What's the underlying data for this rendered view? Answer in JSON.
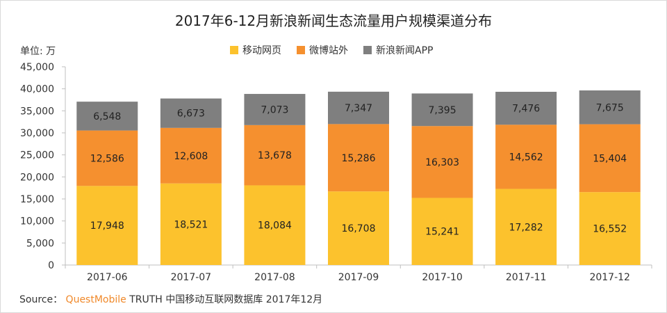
{
  "title": "2017年6-12月新浪新闻生态流量用户规模渠道分布",
  "unit_label": "单位: 万",
  "source": {
    "prefix": "Source：",
    "brand": "QuestMobile",
    "rest": " TRUTH 中国移动互联网数据库 2017年12月"
  },
  "chart_data": {
    "type": "bar",
    "stacked": true,
    "title": "2017年6-12月新浪新闻生态流量用户规模渠道分布",
    "xlabel": "",
    "ylabel": "单位: 万",
    "ylim": [
      0,
      45000
    ],
    "yticks": [
      0,
      5000,
      10000,
      15000,
      20000,
      25000,
      30000,
      35000,
      40000,
      45000
    ],
    "ytick_labels": [
      "0",
      "5,000",
      "10,000",
      "15,000",
      "20,000",
      "25,000",
      "30,000",
      "35,000",
      "40,000",
      "45,000"
    ],
    "grid": false,
    "legend_position": "top-center",
    "categories": [
      "2017-06",
      "2017-07",
      "2017-08",
      "2017-09",
      "2017-10",
      "2017-11",
      "2017-12"
    ],
    "series": [
      {
        "name": "移动网页",
        "color": "#fcc22d",
        "values": [
          17948,
          18521,
          18084,
          16708,
          15241,
          17282,
          16552
        ],
        "labels": [
          "17,948",
          "18,521",
          "18,084",
          "16,708",
          "15,241",
          "17,282",
          "16,552"
        ]
      },
      {
        "name": "微博站外",
        "color": "#f5902f",
        "values": [
          12586,
          12608,
          13678,
          15286,
          16303,
          14562,
          15404
        ],
        "labels": [
          "12,586",
          "12,608",
          "13,678",
          "15,286",
          "16,303",
          "14,562",
          "15,404"
        ]
      },
      {
        "name": "新浪新闻APP",
        "color": "#7f7f7f",
        "values": [
          6548,
          6673,
          7073,
          7347,
          7395,
          7476,
          7675
        ],
        "labels": [
          "6,548",
          "6,673",
          "7,073",
          "7,347",
          "7,395",
          "7,476",
          "7,675"
        ]
      }
    ]
  }
}
